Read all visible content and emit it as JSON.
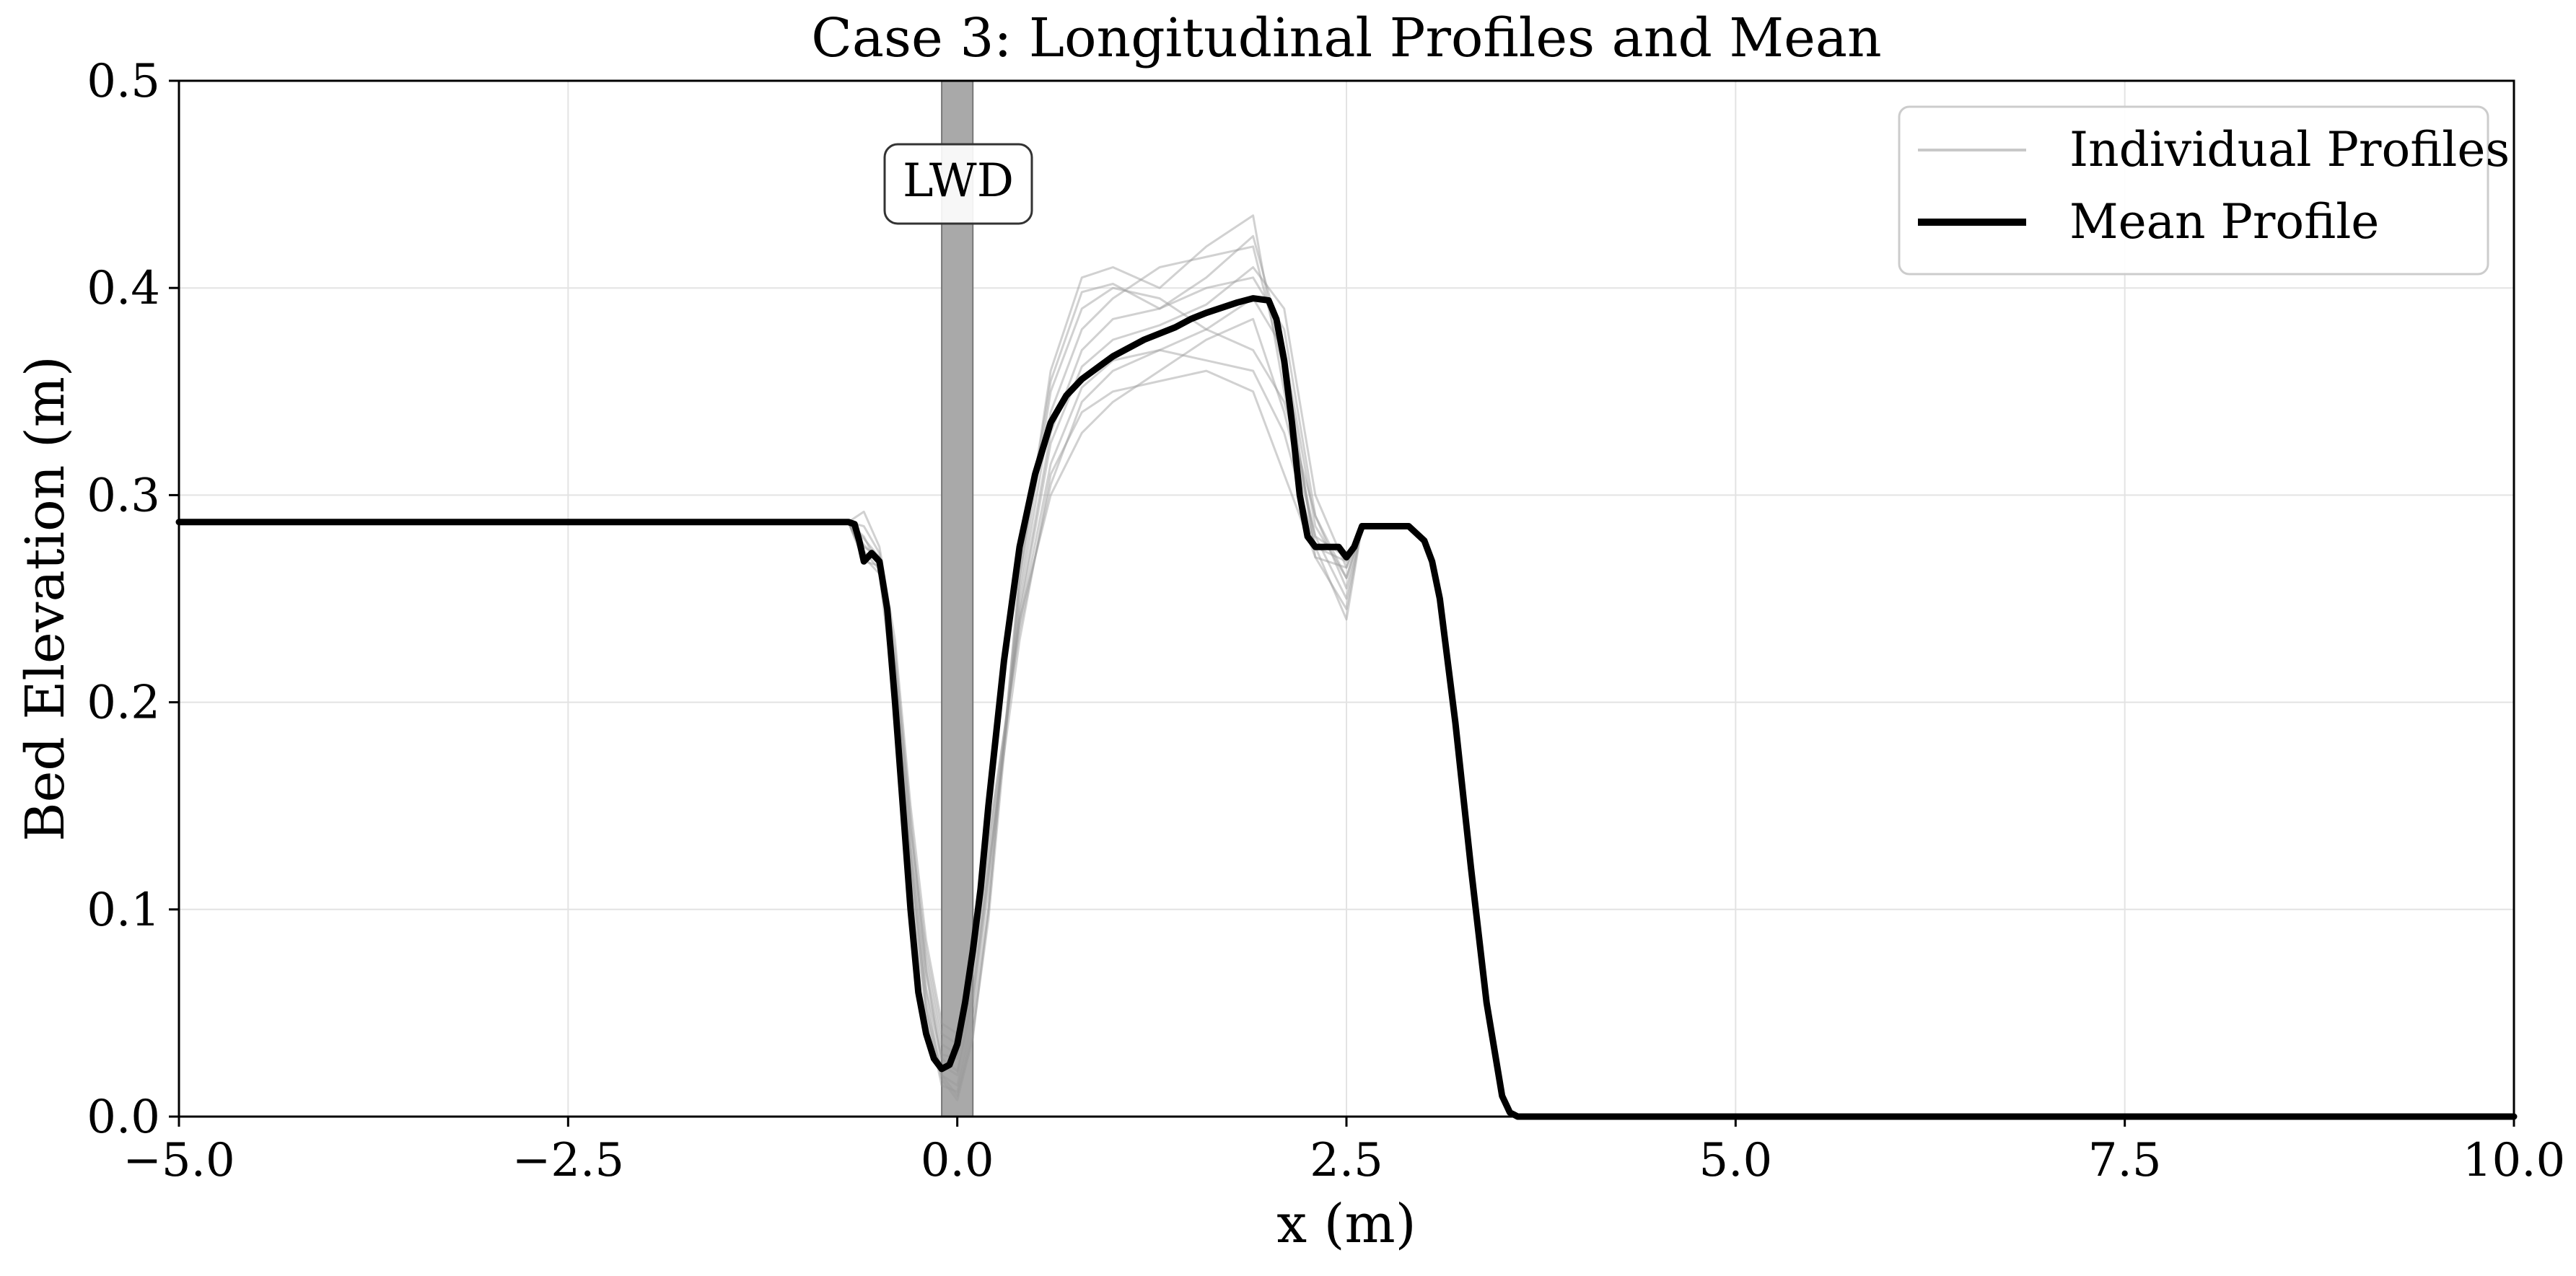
{
  "chart_data": {
    "type": "line",
    "title": "Case 3: Longitudinal Profiles and Mean",
    "xlabel": "x (m)",
    "ylabel": "Bed Elevation (m)",
    "xlim": [
      -5.0,
      10.0
    ],
    "ylim": [
      0.0,
      0.5
    ],
    "x_ticks": [
      -5.0,
      -2.5,
      0.0,
      2.5,
      5.0,
      7.5,
      10.0
    ],
    "x_tick_labels": [
      "−5.0",
      "−2.5",
      "0.0",
      "2.5",
      "5.0",
      "7.5",
      "10.0"
    ],
    "y_ticks": [
      0.0,
      0.1,
      0.2,
      0.3,
      0.4,
      0.5
    ],
    "y_tick_labels": [
      "0.0",
      "0.1",
      "0.2",
      "0.3",
      "0.4",
      "0.5"
    ],
    "grid": true,
    "legend_position": "top-right",
    "legend": [
      {
        "label": "Individual Profiles",
        "color": "#c8c8c8",
        "style": "thin"
      },
      {
        "label": "Mean Profile",
        "color": "#000000",
        "style": "thick"
      }
    ],
    "annotation": {
      "text": "LWD",
      "x": 0.0,
      "y": 0.452
    },
    "lwd_band": {
      "x_start": -0.1,
      "x_end": 0.1,
      "color": "#a9a9a9"
    },
    "series": [
      {
        "name": "Mean Profile",
        "color": "#000000",
        "x": [
          -5.0,
          -2.5,
          -0.7,
          -0.66,
          -0.63,
          -0.6,
          -0.55,
          -0.5,
          -0.45,
          -0.4,
          -0.35,
          -0.3,
          -0.25,
          -0.2,
          -0.15,
          -0.1,
          -0.05,
          0.0,
          0.05,
          0.1,
          0.15,
          0.2,
          0.3,
          0.4,
          0.5,
          0.6,
          0.7,
          0.8,
          1.0,
          1.2,
          1.4,
          1.5,
          1.6,
          1.8,
          1.9,
          2.0,
          2.05,
          2.1,
          2.15,
          2.2,
          2.25,
          2.3,
          2.4,
          2.45,
          2.5,
          2.55,
          2.6,
          2.7,
          2.8,
          2.9,
          3.0,
          3.05,
          3.1,
          3.2,
          3.3,
          3.4,
          3.5,
          3.55,
          3.6,
          5.0,
          7.5,
          10.0
        ],
        "y": [
          0.287,
          0.287,
          0.287,
          0.286,
          0.278,
          0.268,
          0.272,
          0.268,
          0.245,
          0.2,
          0.15,
          0.1,
          0.06,
          0.04,
          0.028,
          0.023,
          0.025,
          0.035,
          0.055,
          0.08,
          0.11,
          0.15,
          0.22,
          0.275,
          0.31,
          0.335,
          0.348,
          0.356,
          0.367,
          0.375,
          0.381,
          0.385,
          0.388,
          0.393,
          0.395,
          0.394,
          0.385,
          0.365,
          0.335,
          0.3,
          0.28,
          0.275,
          0.275,
          0.275,
          0.27,
          0.275,
          0.285,
          0.285,
          0.285,
          0.285,
          0.278,
          0.268,
          0.25,
          0.19,
          0.12,
          0.055,
          0.01,
          0.002,
          0.0,
          0.0,
          0.0,
          0.0
        ]
      },
      {
        "name": "Individual Profiles",
        "color": "#9a9a9a",
        "profiles": [
          {
            "x": [
              -0.7,
              -0.6,
              -0.5,
              -0.4,
              -0.3,
              -0.2,
              -0.1,
              0.0,
              0.1,
              0.2,
              0.4,
              0.6,
              0.8,
              1.0,
              1.3,
              1.6,
              1.9,
              2.1,
              2.3,
              2.5,
              2.6
            ],
            "y": [
              0.287,
              0.27,
              0.262,
              0.2,
              0.11,
              0.05,
              0.015,
              0.012,
              0.045,
              0.1,
              0.26,
              0.36,
              0.405,
              0.41,
              0.4,
              0.42,
              0.435,
              0.35,
              0.28,
              0.25,
              0.285
            ]
          },
          {
            "x": [
              -0.7,
              -0.6,
              -0.5,
              -0.4,
              -0.3,
              -0.2,
              -0.1,
              0.0,
              0.1,
              0.2,
              0.4,
              0.6,
              0.8,
              1.0,
              1.3,
              1.6,
              1.9,
              2.1,
              2.3,
              2.5,
              2.6
            ],
            "y": [
              0.287,
              0.275,
              0.27,
              0.215,
              0.13,
              0.07,
              0.03,
              0.028,
              0.06,
              0.12,
              0.23,
              0.31,
              0.34,
              0.35,
              0.355,
              0.36,
              0.35,
              0.31,
              0.27,
              0.265,
              0.285
            ]
          },
          {
            "x": [
              -0.7,
              -0.6,
              -0.5,
              -0.4,
              -0.3,
              -0.2,
              -0.1,
              0.0,
              0.1,
              0.2,
              0.4,
              0.6,
              0.8,
              1.0,
              1.3,
              1.6,
              1.9,
              2.1,
              2.3,
              2.5,
              2.6
            ],
            "y": [
              0.287,
              0.28,
              0.265,
              0.21,
              0.12,
              0.055,
              0.02,
              0.015,
              0.05,
              0.11,
              0.25,
              0.34,
              0.38,
              0.395,
              0.41,
              0.415,
              0.42,
              0.36,
              0.275,
              0.24,
              0.285
            ]
          },
          {
            "x": [
              -0.7,
              -0.6,
              -0.5,
              -0.4,
              -0.3,
              -0.2,
              -0.1,
              0.0,
              0.1,
              0.2,
              0.4,
              0.6,
              0.8,
              1.0,
              1.3,
              1.6,
              1.9,
              2.1,
              2.3,
              2.5,
              2.6
            ],
            "y": [
              0.287,
              0.27,
              0.27,
              0.22,
              0.14,
              0.08,
              0.04,
              0.035,
              0.07,
              0.13,
              0.24,
              0.3,
              0.33,
              0.345,
              0.36,
              0.375,
              0.385,
              0.34,
              0.28,
              0.27,
              0.285
            ]
          },
          {
            "x": [
              -0.7,
              -0.6,
              -0.5,
              -0.4,
              -0.3,
              -0.2,
              -0.1,
              0.0,
              0.1,
              0.2,
              0.4,
              0.6,
              0.8,
              1.0,
              1.3,
              1.6,
              1.9,
              2.1,
              2.3,
              2.5,
              2.6
            ],
            "y": [
              0.287,
              0.285,
              0.272,
              0.225,
              0.145,
              0.07,
              0.025,
              0.02,
              0.055,
              0.115,
              0.245,
              0.33,
              0.37,
              0.385,
              0.39,
              0.4,
              0.405,
              0.38,
              0.29,
              0.255,
              0.285
            ]
          },
          {
            "x": [
              -0.7,
              -0.6,
              -0.5,
              -0.4,
              -0.3,
              -0.2,
              -0.1,
              0.0,
              0.1,
              0.2,
              0.4,
              0.6,
              0.8,
              1.0,
              1.3,
              1.6,
              1.9,
              2.1,
              2.3,
              2.5,
              2.6
            ],
            "y": [
              0.287,
              0.268,
              0.266,
              0.205,
              0.125,
              0.06,
              0.02,
              0.01,
              0.04,
              0.095,
              0.255,
              0.35,
              0.39,
              0.4,
              0.395,
              0.38,
              0.37,
              0.345,
              0.29,
              0.26,
              0.285
            ]
          },
          {
            "x": [
              -0.7,
              -0.6,
              -0.5,
              -0.4,
              -0.3,
              -0.2,
              -0.1,
              0.0,
              0.1,
              0.2,
              0.4,
              0.6,
              0.8,
              1.0,
              1.3,
              1.6,
              1.9,
              2.1,
              2.3,
              2.5,
              2.6
            ],
            "y": [
              0.287,
              0.292,
              0.275,
              0.23,
              0.15,
              0.085,
              0.045,
              0.04,
              0.075,
              0.135,
              0.235,
              0.305,
              0.345,
              0.36,
              0.37,
              0.38,
              0.395,
              0.37,
              0.285,
              0.26,
              0.285
            ]
          },
          {
            "x": [
              -0.7,
              -0.6,
              -0.5,
              -0.4,
              -0.3,
              -0.2,
              -0.1,
              0.0,
              0.1,
              0.2,
              0.4,
              0.6,
              0.8,
              1.0,
              1.3,
              1.6,
              1.9,
              2.1,
              2.3,
              2.5,
              2.6
            ],
            "y": [
              0.287,
              0.276,
              0.268,
              0.212,
              0.13,
              0.062,
              0.028,
              0.022,
              0.058,
              0.118,
              0.242,
              0.325,
              0.362,
              0.375,
              0.382,
              0.392,
              0.41,
              0.39,
              0.3,
              0.265,
              0.285
            ]
          },
          {
            "x": [
              -0.7,
              -0.6,
              -0.5,
              -0.4,
              -0.3,
              -0.2,
              -0.1,
              0.0,
              0.1,
              0.2,
              0.4,
              0.6,
              0.8,
              1.0,
              1.3,
              1.6,
              1.9,
              2.1,
              2.3,
              2.5,
              2.6
            ],
            "y": [
              0.287,
              0.273,
              0.264,
              0.208,
              0.122,
              0.052,
              0.018,
              0.008,
              0.038,
              0.1,
              0.262,
              0.355,
              0.398,
              0.402,
              0.39,
              0.405,
              0.425,
              0.37,
              0.27,
              0.245,
              0.285
            ]
          },
          {
            "x": [
              -0.7,
              -0.6,
              -0.5,
              -0.4,
              -0.3,
              -0.2,
              -0.1,
              0.0,
              0.1,
              0.2,
              0.4,
              0.6,
              0.8,
              1.0,
              1.3,
              1.6,
              1.9,
              2.1,
              2.3,
              2.5,
              2.6
            ],
            "y": [
              0.287,
              0.279,
              0.27,
              0.218,
              0.138,
              0.075,
              0.035,
              0.03,
              0.065,
              0.125,
              0.238,
              0.315,
              0.352,
              0.365,
              0.37,
              0.365,
              0.36,
              0.33,
              0.275,
              0.268,
              0.285
            ]
          }
        ]
      }
    ]
  }
}
